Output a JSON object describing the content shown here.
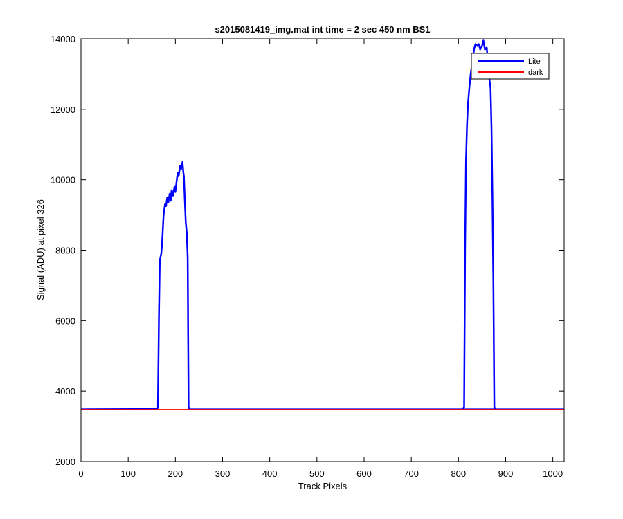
{
  "chart_data": {
    "type": "line",
    "title": "s2015081419_img.mat int time = 2 sec  450 nm BS1",
    "xlabel": "Track Pixels",
    "ylabel": "Signal (ADU) at pixel 326",
    "xlim": [
      0,
      1024
    ],
    "ylim": [
      2000,
      14000
    ],
    "xticks": [
      0,
      100,
      200,
      300,
      400,
      500,
      600,
      700,
      800,
      900,
      1000
    ],
    "yticks": [
      2000,
      4000,
      6000,
      8000,
      10000,
      12000,
      14000
    ],
    "grid": false,
    "legend_position": "top-right",
    "series": [
      {
        "name": "Lite",
        "color": "#0000ff",
        "x": [
          0,
          160,
          163,
          165,
          167,
          170,
          172,
          175,
          178,
          180,
          183,
          185,
          188,
          190,
          192,
          195,
          198,
          200,
          203,
          205,
          207,
          210,
          212,
          215,
          217,
          218,
          220,
          222,
          224,
          226,
          228,
          230,
          1024
        ],
        "y": [
          3480,
          3490,
          3520,
          6000,
          7700,
          7900,
          8200,
          9000,
          9300,
          9250,
          9500,
          9350,
          9600,
          9400,
          9700,
          9550,
          9800,
          9650,
          10000,
          10200,
          10100,
          10400,
          10300,
          10500,
          10200,
          10100,
          9400,
          8800,
          8500,
          7800,
          3550,
          3480,
          3480
        ],
        "x2": [
          808,
          812,
          814,
          816,
          818,
          820,
          823,
          826,
          830,
          833,
          836,
          840,
          843,
          846,
          850,
          853,
          856,
          860,
          863,
          866,
          868,
          870,
          872,
          874,
          876,
          878
        ],
        "y2": [
          3480,
          3550,
          8000,
          10500,
          11500,
          12100,
          12600,
          13000,
          13400,
          13700,
          13850,
          13800,
          13850,
          13700,
          13800,
          13950,
          13700,
          13750,
          13200,
          12800,
          12600,
          11500,
          9500,
          7000,
          3550,
          3480
        ]
      },
      {
        "name": "dark",
        "color": "#ff0000",
        "x": [
          0,
          1024
        ],
        "y": [
          3475,
          3475
        ]
      }
    ]
  }
}
